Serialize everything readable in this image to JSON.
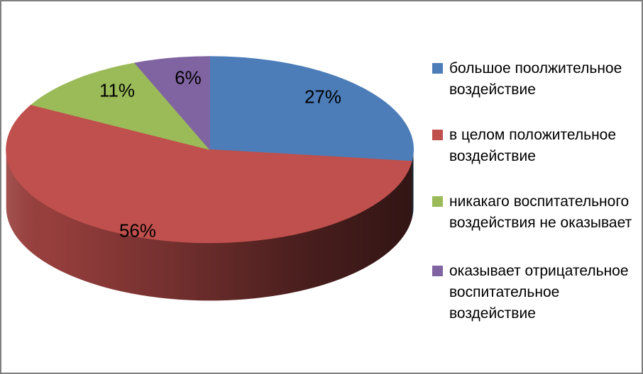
{
  "frame": {
    "border_color": "#7F7F7F",
    "background_color": "#FFFFFF"
  },
  "chart_data": {
    "type": "pie",
    "style": "3d",
    "title": "",
    "legend_position": "right",
    "start_angle_deg": 0,
    "direction": "clockwise",
    "data_labels": "percent-inside",
    "slices": [
      {
        "label": "большое поолжительное воздействие",
        "value": 27,
        "display": "27%",
        "color": "#4C7DB8"
      },
      {
        "label": "в целом положительное воздействие",
        "value": 56,
        "display": "56%",
        "color": "#C0504D"
      },
      {
        "label": "никакаго воспитательного воздействия не оказывает",
        "value": 11,
        "display": "11%",
        "color": "#9BBB59"
      },
      {
        "label": "оказывает отрицательное воспитательное воздействие",
        "value": 6,
        "display": "6%",
        "color": "#8064A2"
      }
    ]
  },
  "legend": {
    "items": [
      {
        "color": "#4C7DB8",
        "lines": [
          "большое поолжительное",
          "воздействие"
        ]
      },
      {
        "color": "#C0504D",
        "lines": [
          "в целом положительное",
          "воздействие"
        ]
      },
      {
        "color": "#9BBB59",
        "lines": [
          "никакаго воспитательного",
          "воздействия не оказывает"
        ]
      },
      {
        "color": "#8064A2",
        "lines": [
          "оказывает отрицательное",
          "воспитательное",
          "воздействие"
        ]
      }
    ]
  }
}
